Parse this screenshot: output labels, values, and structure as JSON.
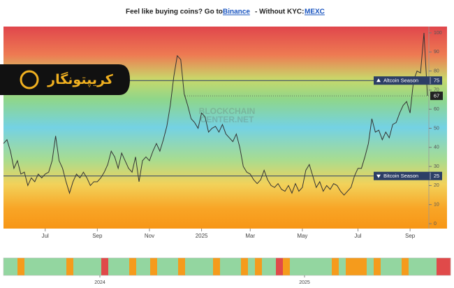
{
  "banner": {
    "text1": "Feel like buying coins? Go to",
    "link1": "Binance",
    "text2": "- Without KYC:",
    "link2": "MEXC"
  },
  "logo": {
    "text": "کریپتونگار"
  },
  "watermark": [
    "BLOCKCHAIN",
    "CENTER.NET"
  ],
  "chart_data": {
    "type": "line",
    "color": "#333333",
    "values": [
      42,
      44,
      38,
      29,
      33,
      26,
      27,
      20,
      24,
      22,
      26,
      24,
      26,
      27,
      33,
      46,
      33,
      29,
      22,
      16,
      22,
      26,
      24,
      27,
      24,
      20,
      22,
      22,
      24,
      27,
      31,
      38,
      35,
      29,
      37,
      33,
      29,
      27,
      35,
      22,
      33,
      35,
      33,
      38,
      42,
      38,
      44,
      51,
      62,
      77,
      88,
      86,
      68,
      62,
      55,
      53,
      50,
      58,
      56,
      48,
      50,
      51,
      48,
      52,
      47,
      45,
      43,
      47,
      40,
      30,
      27,
      26,
      23,
      21,
      23,
      28,
      23,
      20,
      19,
      21,
      18,
      17,
      20,
      16,
      21,
      17,
      19,
      28,
      31,
      25,
      19,
      22,
      17,
      20,
      18,
      21,
      20,
      17,
      15,
      17,
      19,
      25,
      29,
      29,
      35,
      42,
      55,
      48,
      49,
      44,
      48,
      45,
      52,
      53,
      58,
      62,
      64,
      58,
      75,
      80,
      79,
      100,
      67
    ],
    "xlim": [
      0,
      122
    ],
    "xticks": [
      {
        "value": 12,
        "label": "Jul"
      },
      {
        "value": 27,
        "label": "Sep"
      },
      {
        "value": 42,
        "label": "Nov"
      },
      {
        "value": 57,
        "label": "2025"
      },
      {
        "value": 71,
        "label": "Mar"
      },
      {
        "value": 86,
        "label": "May"
      },
      {
        "value": 102,
        "label": "Jul"
      },
      {
        "value": 117,
        "label": "Sep"
      }
    ],
    "ylim": [
      0,
      100
    ],
    "yticks": [
      0,
      10,
      20,
      30,
      40,
      50,
      60,
      70,
      80,
      90,
      100
    ],
    "reference_lines": [
      {
        "value": 75,
        "label": "Altcoin Season",
        "color": "#2c3e66"
      },
      {
        "value": 25,
        "label": "Bitcoin Season",
        "color": "#2c3e66"
      }
    ],
    "strip": {
      "values": [
        50,
        50,
        20,
        50,
        50,
        50,
        50,
        50,
        50,
        20,
        50,
        50,
        50,
        50,
        80,
        50,
        50,
        50,
        20,
        50,
        50,
        20,
        50,
        50,
        50,
        20,
        50,
        50,
        50,
        50,
        20,
        50,
        50,
        50,
        20,
        50,
        20,
        50,
        50,
        80,
        20,
        50,
        50,
        50,
        50,
        50,
        50,
        20,
        50,
        20,
        20,
        20,
        50,
        20,
        50,
        50,
        50,
        20,
        50,
        50,
        50,
        50,
        80,
        80
      ],
      "xticks": [
        {
          "value": 13.8,
          "label": "2024"
        },
        {
          "value": 43.1,
          "label": "2025"
        }
      ],
      "high_color": "#e04a4a",
      "mid_color": "#93d6a0",
      "low_color": "#f59b1c"
    }
  }
}
